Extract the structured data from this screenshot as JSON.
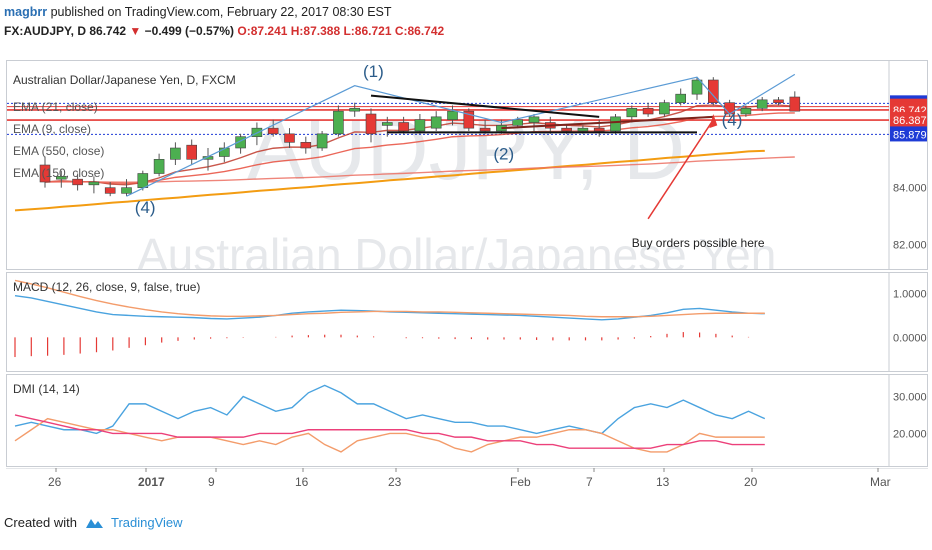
{
  "header": {
    "author": "magbrr",
    "published": "published on TradingView.com, February 22, 2017 08:30 EST"
  },
  "symbol_line": {
    "symbol": "FX:AUDJPY, D",
    "last": "86.742",
    "change": "−0.499 (−0.57%)",
    "ohlc": "O:87.241 H:87.388 L:86.721 C:86.742"
  },
  "watermark": {
    "ticker": "AUDJPY, D",
    "name": "Australian Dollar/Japanese Yen"
  },
  "footer": {
    "created_with": "Created with",
    "brand": "TradingView"
  },
  "chart_data": {
    "type": "candlestick",
    "title": "Australian Dollar/Japanese Yen, D, FXCM",
    "legend": [
      "EMA (21, close)",
      "EMA (9, close)",
      "EMA (550, close)",
      "EMA (150, close)"
    ],
    "x_ticks": [
      "26",
      "2017",
      "9",
      "16",
      "23",
      "Feb",
      "7",
      "13",
      "20",
      "Mar"
    ],
    "price_axis": {
      "ticks": [
        "84.000",
        "82.000"
      ],
      "labels": [
        {
          "value": 86.976,
          "text": "86.976",
          "color": "#1e3bd6"
        },
        {
          "value": 86.859,
          "text": "86.859",
          "color": "#e53935"
        },
        {
          "value": 86.742,
          "text": "86.742",
          "color": "#e53935"
        },
        {
          "value": 86.387,
          "text": "86.387",
          "color": "#e53935"
        },
        {
          "value": 85.879,
          "text": "85.879",
          "color": "#1e3bd6"
        }
      ]
    },
    "candles": [
      {
        "o": 84.8,
        "h": 85.1,
        "l": 84.0,
        "c": 84.2
      },
      {
        "o": 84.3,
        "h": 84.6,
        "l": 84.0,
        "c": 84.4
      },
      {
        "o": 84.3,
        "h": 84.5,
        "l": 83.9,
        "c": 84.1
      },
      {
        "o": 84.1,
        "h": 84.4,
        "l": 83.8,
        "c": 84.2
      },
      {
        "o": 84.0,
        "h": 84.2,
        "l": 83.7,
        "c": 83.8
      },
      {
        "o": 83.8,
        "h": 84.3,
        "l": 83.7,
        "c": 84.0
      },
      {
        "o": 84.0,
        "h": 84.6,
        "l": 83.9,
        "c": 84.5
      },
      {
        "o": 84.5,
        "h": 85.2,
        "l": 84.4,
        "c": 85.0
      },
      {
        "o": 85.0,
        "h": 85.6,
        "l": 84.8,
        "c": 85.4
      },
      {
        "o": 85.5,
        "h": 85.7,
        "l": 84.8,
        "c": 85.0
      },
      {
        "o": 85.0,
        "h": 85.4,
        "l": 84.6,
        "c": 85.1
      },
      {
        "o": 85.1,
        "h": 85.6,
        "l": 84.9,
        "c": 85.4
      },
      {
        "o": 85.4,
        "h": 85.9,
        "l": 85.2,
        "c": 85.8
      },
      {
        "o": 85.8,
        "h": 86.3,
        "l": 85.5,
        "c": 86.1
      },
      {
        "o": 86.1,
        "h": 86.4,
        "l": 85.8,
        "c": 85.9
      },
      {
        "o": 85.9,
        "h": 86.1,
        "l": 85.4,
        "c": 85.6
      },
      {
        "o": 85.6,
        "h": 85.8,
        "l": 85.2,
        "c": 85.4
      },
      {
        "o": 85.4,
        "h": 86.0,
        "l": 85.3,
        "c": 85.9
      },
      {
        "o": 85.9,
        "h": 86.9,
        "l": 85.8,
        "c": 86.7
      },
      {
        "o": 86.7,
        "h": 87.0,
        "l": 86.5,
        "c": 86.8
      },
      {
        "o": 86.6,
        "h": 86.8,
        "l": 85.6,
        "c": 85.9
      },
      {
        "o": 86.2,
        "h": 86.5,
        "l": 85.8,
        "c": 86.3
      },
      {
        "o": 86.3,
        "h": 86.5,
        "l": 85.9,
        "c": 86.0
      },
      {
        "o": 86.0,
        "h": 86.6,
        "l": 85.9,
        "c": 86.4
      },
      {
        "o": 86.1,
        "h": 86.7,
        "l": 86.0,
        "c": 86.5
      },
      {
        "o": 86.4,
        "h": 86.9,
        "l": 86.2,
        "c": 86.7
      },
      {
        "o": 86.7,
        "h": 86.8,
        "l": 86.0,
        "c": 86.1
      },
      {
        "o": 86.1,
        "h": 86.4,
        "l": 85.9,
        "c": 86.0
      },
      {
        "o": 86.0,
        "h": 86.4,
        "l": 85.9,
        "c": 86.2
      },
      {
        "o": 86.2,
        "h": 86.5,
        "l": 86.1,
        "c": 86.4
      },
      {
        "o": 86.3,
        "h": 86.6,
        "l": 86.0,
        "c": 86.5
      },
      {
        "o": 86.3,
        "h": 86.5,
        "l": 85.9,
        "c": 86.1
      },
      {
        "o": 86.1,
        "h": 86.2,
        "l": 85.9,
        "c": 86.0
      },
      {
        "o": 86.0,
        "h": 86.2,
        "l": 85.9,
        "c": 86.1
      },
      {
        "o": 86.1,
        "h": 86.4,
        "l": 85.8,
        "c": 86.0
      },
      {
        "o": 86.0,
        "h": 86.6,
        "l": 85.9,
        "c": 86.5
      },
      {
        "o": 86.5,
        "h": 86.9,
        "l": 86.3,
        "c": 86.8
      },
      {
        "o": 86.8,
        "h": 87.0,
        "l": 86.5,
        "c": 86.6
      },
      {
        "o": 86.6,
        "h": 87.1,
        "l": 86.5,
        "c": 87.0
      },
      {
        "o": 87.0,
        "h": 87.5,
        "l": 86.9,
        "c": 87.3
      },
      {
        "o": 87.3,
        "h": 87.9,
        "l": 87.1,
        "c": 87.8
      },
      {
        "o": 87.8,
        "h": 87.9,
        "l": 86.9,
        "c": 87.0
      },
      {
        "o": 87.0,
        "h": 87.1,
        "l": 86.5,
        "c": 86.6
      },
      {
        "o": 86.6,
        "h": 86.9,
        "l": 86.5,
        "c": 86.8
      },
      {
        "o": 86.8,
        "h": 87.2,
        "l": 86.7,
        "c": 87.1
      },
      {
        "o": 87.1,
        "h": 87.2,
        "l": 86.9,
        "c": 87.0
      },
      {
        "o": 87.2,
        "h": 87.4,
        "l": 86.7,
        "c": 86.7
      }
    ],
    "ema_550": [
      83.2,
      83.24,
      83.28,
      83.33,
      83.37,
      83.42,
      83.47,
      83.51,
      83.56,
      83.61,
      83.65,
      83.7,
      83.75,
      83.79,
      83.84,
      83.89,
      83.93,
      83.98,
      84.02,
      84.07,
      84.12,
      84.16,
      84.21,
      84.26,
      84.3,
      84.35,
      84.4,
      84.44,
      84.49,
      84.54,
      84.58,
      84.63,
      84.67,
      84.72,
      84.77,
      84.81,
      84.86,
      84.91,
      84.95,
      85.0,
      85.05,
      85.09,
      85.14,
      85.19,
      85.23,
      85.28,
      85.3
    ],
    "annotations": {
      "waves": [
        "(1)",
        "(2)",
        "(4)",
        "(4)"
      ],
      "note": "Buy orders possible here"
    },
    "macd": {
      "label": "MACD (12, 26, close, 9, false, true)",
      "y_ticks": [
        "1.0000",
        "0.0000"
      ],
      "macd": [
        0.95,
        0.9,
        0.82,
        0.74,
        0.66,
        0.58,
        0.52,
        0.5,
        0.48,
        0.47,
        0.46,
        0.45,
        0.43,
        0.42,
        0.44,
        0.46,
        0.5,
        0.55,
        0.58,
        0.6,
        0.62,
        0.61,
        0.6,
        0.58,
        0.57,
        0.56,
        0.55,
        0.54,
        0.53,
        0.52,
        0.51,
        0.5,
        0.48,
        0.46,
        0.44,
        0.42,
        0.4,
        0.42,
        0.46,
        0.5,
        0.56,
        0.64,
        0.66,
        0.62,
        0.58,
        0.55,
        0.54
      ],
      "signal": [
        1.3,
        1.22,
        1.13,
        1.03,
        0.93,
        0.84,
        0.76,
        0.69,
        0.63,
        0.58,
        0.54,
        0.51,
        0.49,
        0.48,
        0.48,
        0.49,
        0.5,
        0.52,
        0.54,
        0.55,
        0.57,
        0.58,
        0.59,
        0.59,
        0.59,
        0.58,
        0.58,
        0.57,
        0.56,
        0.55,
        0.54,
        0.53,
        0.52,
        0.51,
        0.5,
        0.48,
        0.47,
        0.47,
        0.47,
        0.48,
        0.5,
        0.52,
        0.54,
        0.55,
        0.55,
        0.55,
        0.55
      ],
      "histogram": [
        -0.45,
        -0.43,
        -0.42,
        -0.4,
        -0.37,
        -0.34,
        -0.3,
        -0.24,
        -0.18,
        -0.12,
        -0.08,
        -0.05,
        -0.03,
        -0.02,
        -0.01,
        0.0,
        0.01,
        0.04,
        0.05,
        0.06,
        0.06,
        0.04,
        0.02,
        0.0,
        -0.02,
        -0.02,
        -0.03,
        -0.04,
        -0.04,
        -0.05,
        -0.05,
        -0.05,
        -0.06,
        -0.07,
        -0.07,
        -0.07,
        -0.07,
        -0.05,
        -0.03,
        0.03,
        0.08,
        0.12,
        0.11,
        0.08,
        0.04,
        0.01,
        0.0
      ]
    },
    "dmi": {
      "label": "DMI (14, 14)",
      "y_ticks": [
        "30.0000",
        "20.0000"
      ],
      "di_plus": [
        22,
        23,
        22,
        21,
        21,
        20,
        22,
        28,
        28,
        26,
        24,
        26,
        27,
        25,
        30,
        28,
        26,
        27,
        31,
        33,
        31,
        28,
        28,
        26,
        24,
        25,
        24,
        23,
        23,
        22,
        22,
        21,
        20,
        21,
        22,
        21,
        20,
        24,
        27,
        28,
        27,
        29,
        27,
        25,
        24,
        26,
        24
      ],
      "di_minus": [
        18,
        21,
        24,
        23,
        22,
        21,
        21,
        20,
        19,
        18,
        19,
        19,
        19,
        18,
        17,
        18,
        17,
        19,
        20,
        17,
        15,
        18,
        19,
        20,
        20,
        19,
        18,
        16,
        15,
        17,
        18,
        19,
        19,
        20,
        21,
        21,
        20,
        18,
        16,
        15,
        15,
        17,
        20,
        19,
        19,
        19,
        19
      ],
      "adx": [
        25,
        24,
        23,
        22,
        21,
        21,
        20,
        20,
        20,
        20,
        19,
        19,
        19,
        19,
        19,
        20,
        20,
        20,
        21,
        21,
        21,
        21,
        21,
        21,
        21,
        20,
        20,
        19,
        19,
        18,
        18,
        18,
        17,
        17,
        16,
        16,
        16,
        16,
        16,
        16,
        17,
        17,
        18,
        18,
        17,
        17,
        17
      ]
    }
  }
}
